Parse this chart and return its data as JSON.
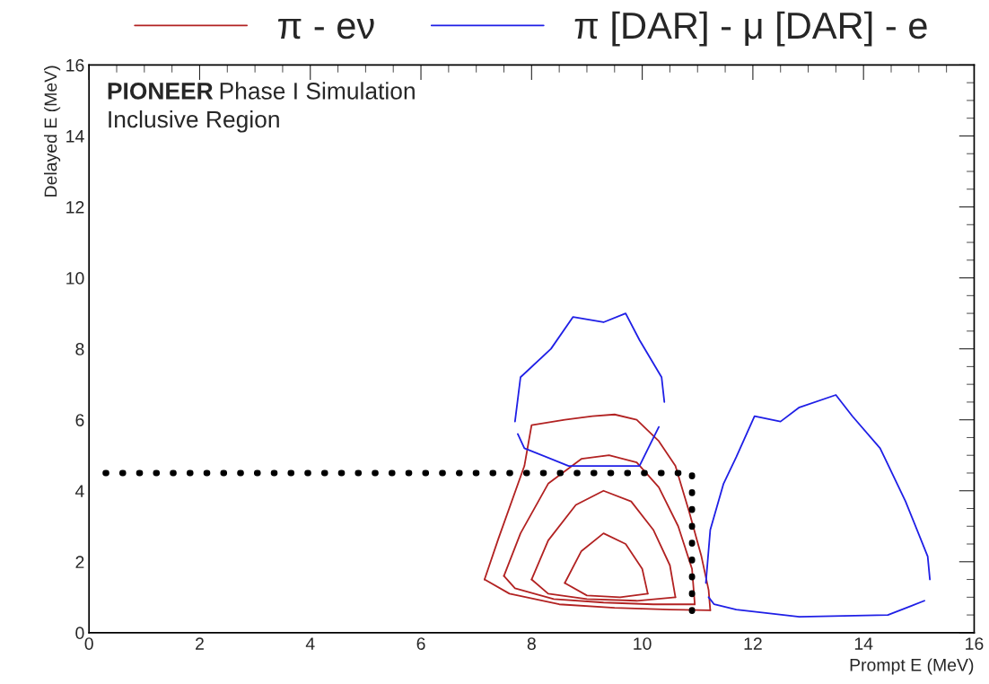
{
  "chart_data": {
    "type": "line",
    "xlabel": "Prompt E (MeV)",
    "ylabel": "Delayed E (MeV)",
    "xlim": [
      0,
      16
    ],
    "ylim": [
      0,
      16
    ],
    "xticks": [
      0,
      2,
      4,
      6,
      8,
      10,
      12,
      14,
      16
    ],
    "yticks": [
      0,
      2,
      4,
      6,
      8,
      10,
      12,
      14,
      16
    ],
    "grid": false,
    "legend": "top",
    "marker": "none",
    "annotations": [
      "PIONEER Phase I Simulation",
      "Inclusive Region"
    ],
    "series": [
      {
        "name": "π - eν",
        "color": "#b22222",
        "x": [
          7.15,
          7.4,
          7.87,
          8.0,
          8.6,
          9.1,
          9.5,
          9.9,
          10.3,
          10.6,
          10.85,
          11.07,
          11.2,
          11.23
        ],
        "values": [
          1.5,
          2.65,
          4.7,
          5.85,
          6.0,
          6.1,
          6.15,
          6.0,
          5.4,
          4.7,
          3.4,
          2.15,
          1.2,
          0.63
        ]
      },
      {
        "color": "#b22222",
        "x": [
          7.15,
          7.6,
          8.5,
          9.5,
          10.5,
          11.23
        ],
        "values": [
          1.5,
          1.1,
          0.8,
          0.7,
          0.65,
          0.63
        ]
      },
      {
        "color": "#b22222",
        "x": [
          7.5,
          7.8,
          8.3,
          8.9,
          9.4,
          9.9,
          10.3,
          10.65,
          10.9,
          10.95
        ],
        "values": [
          1.6,
          2.8,
          4.2,
          4.9,
          5.0,
          4.8,
          4.1,
          3.0,
          1.8,
          0.8
        ]
      },
      {
        "color": "#b22222",
        "x": [
          7.5,
          7.7,
          8.4,
          9.3,
          10.2,
          10.95
        ],
        "values": [
          1.6,
          1.25,
          0.95,
          0.85,
          0.8,
          0.8
        ]
      },
      {
        "color": "#b22222",
        "x": [
          8.0,
          8.3,
          8.8,
          9.3,
          9.8,
          10.2,
          10.5,
          10.6
        ],
        "values": [
          1.5,
          2.6,
          3.6,
          4.0,
          3.7,
          2.9,
          1.9,
          1.0
        ]
      },
      {
        "color": "#b22222",
        "x": [
          8.0,
          8.3,
          9.0,
          9.9,
          10.6
        ],
        "values": [
          1.5,
          1.1,
          0.95,
          0.9,
          1.0
        ]
      },
      {
        "color": "#b22222",
        "x": [
          8.6,
          8.9,
          9.3,
          9.7,
          10.0,
          10.1
        ],
        "values": [
          1.4,
          2.3,
          2.8,
          2.5,
          1.8,
          1.1
        ]
      },
      {
        "color": "#b22222",
        "x": [
          8.6,
          9.0,
          9.6,
          10.1
        ],
        "values": [
          1.4,
          1.05,
          1.0,
          1.1
        ]
      },
      {
        "name": "π [DAR] - μ [DAR] - e",
        "color": "#1f1fe6",
        "x": [
          7.7,
          7.8,
          8.35,
          8.75,
          9.3,
          9.7,
          9.95,
          10.35,
          10.4
        ],
        "values": [
          5.95,
          7.2,
          8.0,
          8.9,
          8.75,
          9.0,
          8.25,
          7.2,
          6.5
        ]
      },
      {
        "color": "#1f1fe6",
        "x": [
          7.75,
          7.87,
          8.67,
          9.95,
          10.3
        ],
        "values": [
          5.6,
          5.2,
          4.7,
          4.7,
          5.8
        ]
      },
      {
        "color": "#1f1fe6",
        "x": [
          11.15,
          11.23,
          11.47,
          11.7,
          12.03,
          12.5,
          12.84,
          13.5,
          13.8,
          14.3,
          14.76,
          15.16,
          15.2
        ],
        "values": [
          1.4,
          2.9,
          4.2,
          4.95,
          6.1,
          5.95,
          6.35,
          6.7,
          6.1,
          5.2,
          3.7,
          2.15,
          1.5
        ]
      },
      {
        "color": "#1f1fe6",
        "x": [
          11.2,
          11.3,
          11.7,
          12.84,
          14.44,
          15.1
        ],
        "values": [
          1.0,
          0.8,
          0.65,
          0.45,
          0.5,
          0.9
        ]
      },
      {
        "color": "#000000",
        "line_style": "dotted",
        "x": [
          0.3,
          10.9,
          10.9
        ],
        "values": [
          4.5,
          4.5,
          0.6
        ]
      }
    ]
  }
}
